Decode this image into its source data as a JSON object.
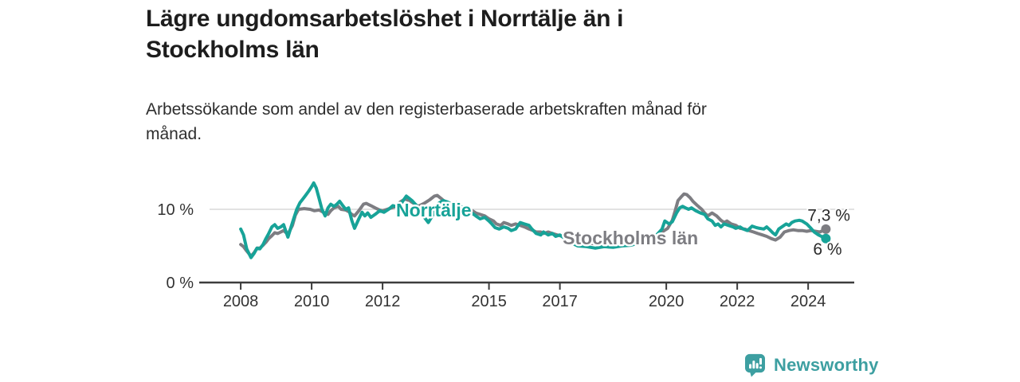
{
  "header": {
    "title": "Lägre ungdomsarbetslöshet i Norrtälje än i\nStockholms län",
    "subtitle": "Arbetssökande som andel av den registerbaserade arbetskraften månad för\nmånad."
  },
  "footer": {
    "brand": "Newsworthy",
    "logo_icon": "bar-chart-speech-bubble-icon"
  },
  "colors": {
    "norrtalje_teal": "#17a398",
    "stockholm_gray": "#7d7d82",
    "gridline": "#d9d9d9",
    "axis": "#3c3c3c",
    "axis_text": "#333333",
    "value_text": "#2b2b2b",
    "brand_teal": "#3d9fa1",
    "title_text": "#1d1d1d"
  },
  "chart_data": {
    "type": "line",
    "x_range": [
      2006.83,
      2025.3
    ],
    "y_range": [
      0,
      14.5
    ],
    "y_gridlines": [
      10
    ],
    "y_tick_labels": [
      {
        "value": 10,
        "label": "10 %"
      },
      {
        "value": 0,
        "label": "0 %"
      }
    ],
    "x_ticks": [
      {
        "value": 2008,
        "label": "2008"
      },
      {
        "value": 2010,
        "label": "2010"
      },
      {
        "value": 2012,
        "label": "2012"
      },
      {
        "value": 2015,
        "label": "2015"
      },
      {
        "value": 2017,
        "label": "2017"
      },
      {
        "value": 2020,
        "label": "2020"
      },
      {
        "value": 2022,
        "label": "2022"
      },
      {
        "value": 2024,
        "label": "2024"
      }
    ],
    "unit": "%",
    "legend_position": "inline-labels",
    "grid": "horizontal-only",
    "series": [
      {
        "name": "Stockholms län",
        "color": "#7d7d82",
        "end_value": 7.3,
        "end_dot": true,
        "name_label": {
          "x": 2017.08,
          "y": 5.2
        },
        "end_label": {
          "text": "7,3 %",
          "x": 2023.98,
          "y": 8.4
        },
        "points": [
          [
            2008.0,
            5.2
          ],
          [
            2008.08,
            4.9
          ],
          [
            2008.17,
            4.3
          ],
          [
            2008.29,
            3.6
          ],
          [
            2008.38,
            4.1
          ],
          [
            2008.46,
            4.7
          ],
          [
            2008.54,
            4.7
          ],
          [
            2008.63,
            5.1
          ],
          [
            2008.71,
            5.5
          ],
          [
            2008.79,
            6.0
          ],
          [
            2008.88,
            6.4
          ],
          [
            2008.96,
            6.8
          ],
          [
            2009.04,
            6.7
          ],
          [
            2009.13,
            6.9
          ],
          [
            2009.21,
            7.1
          ],
          [
            2009.33,
            6.6
          ],
          [
            2009.46,
            7.8
          ],
          [
            2009.54,
            9.2
          ],
          [
            2009.63,
            10.0
          ],
          [
            2009.79,
            10.1
          ],
          [
            2009.96,
            10.0
          ],
          [
            2010.08,
            9.8
          ],
          [
            2010.21,
            9.9
          ],
          [
            2010.33,
            9.6
          ],
          [
            2010.46,
            9.3
          ],
          [
            2010.54,
            9.8
          ],
          [
            2010.63,
            10.2
          ],
          [
            2010.75,
            10.4
          ],
          [
            2010.83,
            10.0
          ],
          [
            2010.96,
            9.9
          ],
          [
            2011.04,
            9.7
          ],
          [
            2011.13,
            9.3
          ],
          [
            2011.21,
            9.1
          ],
          [
            2011.33,
            9.8
          ],
          [
            2011.46,
            10.7
          ],
          [
            2011.54,
            10.8
          ],
          [
            2011.67,
            10.5
          ],
          [
            2011.79,
            10.2
          ],
          [
            2011.92,
            9.9
          ],
          [
            2012.0,
            9.8
          ],
          [
            2012.13,
            10.0
          ],
          [
            2012.25,
            10.2
          ],
          [
            2012.38,
            10.4
          ],
          [
            2012.5,
            11.0
          ],
          [
            2012.63,
            11.4
          ],
          [
            2012.75,
            11.2
          ],
          [
            2012.88,
            10.8
          ],
          [
            2013.0,
            10.4
          ],
          [
            2013.17,
            10.8
          ],
          [
            2013.33,
            11.3
          ],
          [
            2013.46,
            11.8
          ],
          [
            2013.54,
            11.9
          ],
          [
            2013.67,
            11.4
          ],
          [
            2013.79,
            10.9
          ],
          [
            2013.92,
            10.5
          ],
          [
            2014.08,
            10.3
          ],
          [
            2014.25,
            10.1
          ],
          [
            2014.38,
            10.2
          ],
          [
            2014.5,
            9.9
          ],
          [
            2014.63,
            9.5
          ],
          [
            2014.75,
            9.3
          ],
          [
            2014.88,
            9.1
          ],
          [
            2015.0,
            8.7
          ],
          [
            2015.13,
            8.4
          ],
          [
            2015.21,
            8.0
          ],
          [
            2015.33,
            7.8
          ],
          [
            2015.42,
            8.2
          ],
          [
            2015.54,
            8.0
          ],
          [
            2015.63,
            7.8
          ],
          [
            2015.75,
            8.0
          ],
          [
            2015.88,
            7.8
          ],
          [
            2016.0,
            7.6
          ],
          [
            2016.13,
            7.3
          ],
          [
            2016.25,
            7.1
          ],
          [
            2016.33,
            6.9
          ],
          [
            2016.46,
            6.9
          ],
          [
            2016.54,
            6.7
          ],
          [
            2016.67,
            6.9
          ],
          [
            2016.79,
            6.7
          ],
          [
            2016.92,
            6.5
          ],
          [
            2017.0,
            6.4
          ],
          [
            2017.25,
            6.0
          ],
          [
            2017.5,
            5.7
          ],
          [
            2017.75,
            5.4
          ],
          [
            2018.0,
            5.3
          ],
          [
            2018.33,
            5.2
          ],
          [
            2018.67,
            5.3
          ],
          [
            2019.0,
            5.4
          ],
          [
            2019.33,
            5.7
          ],
          [
            2019.63,
            6.2
          ],
          [
            2019.88,
            6.9
          ],
          [
            2020.04,
            7.4
          ],
          [
            2020.17,
            8.5
          ],
          [
            2020.25,
            9.8
          ],
          [
            2020.33,
            11.2
          ],
          [
            2020.42,
            11.7
          ],
          [
            2020.5,
            12.1
          ],
          [
            2020.58,
            12.0
          ],
          [
            2020.67,
            11.6
          ],
          [
            2020.75,
            11.1
          ],
          [
            2020.88,
            10.5
          ],
          [
            2021.0,
            10.0
          ],
          [
            2021.08,
            9.5
          ],
          [
            2021.17,
            9.1
          ],
          [
            2021.29,
            9.5
          ],
          [
            2021.42,
            9.1
          ],
          [
            2021.54,
            8.5
          ],
          [
            2021.63,
            8.2
          ],
          [
            2021.71,
            8.4
          ],
          [
            2021.83,
            8.0
          ],
          [
            2021.96,
            7.8
          ],
          [
            2022.08,
            7.4
          ],
          [
            2022.21,
            7.3
          ],
          [
            2022.33,
            7.1
          ],
          [
            2022.46,
            6.9
          ],
          [
            2022.58,
            6.7
          ],
          [
            2022.71,
            6.5
          ],
          [
            2022.83,
            6.3
          ],
          [
            2022.96,
            6.0
          ],
          [
            2023.08,
            5.8
          ],
          [
            2023.21,
            6.2
          ],
          [
            2023.33,
            6.9
          ],
          [
            2023.46,
            7.1
          ],
          [
            2023.58,
            7.2
          ],
          [
            2023.71,
            7.1
          ],
          [
            2023.83,
            7.1
          ],
          [
            2023.96,
            7.0
          ],
          [
            2024.08,
            7.1
          ],
          [
            2024.21,
            7.0
          ],
          [
            2024.33,
            6.9
          ],
          [
            2024.42,
            7.1
          ],
          [
            2024.5,
            7.3
          ]
        ]
      },
      {
        "name": "Norrtälje",
        "color": "#17a398",
        "end_value": 6.0,
        "end_dot": true,
        "name_label": {
          "x": 2012.38,
          "y": 9.0
        },
        "end_label": {
          "text": "6 %",
          "x": 2024.14,
          "y": 3.8
        },
        "points": [
          [
            2008.0,
            7.3
          ],
          [
            2008.08,
            6.5
          ],
          [
            2008.17,
            4.6
          ],
          [
            2008.29,
            3.4
          ],
          [
            2008.38,
            4.0
          ],
          [
            2008.46,
            4.7
          ],
          [
            2008.54,
            4.6
          ],
          [
            2008.63,
            5.2
          ],
          [
            2008.71,
            6.0
          ],
          [
            2008.79,
            6.7
          ],
          [
            2008.88,
            7.6
          ],
          [
            2008.96,
            7.9
          ],
          [
            2009.04,
            7.4
          ],
          [
            2009.13,
            7.6
          ],
          [
            2009.21,
            7.9
          ],
          [
            2009.33,
            6.2
          ],
          [
            2009.42,
            7.6
          ],
          [
            2009.5,
            8.8
          ],
          [
            2009.58,
            10.0
          ],
          [
            2009.67,
            10.9
          ],
          [
            2009.75,
            11.4
          ],
          [
            2009.83,
            11.9
          ],
          [
            2009.92,
            12.5
          ],
          [
            2010.0,
            13.1
          ],
          [
            2010.06,
            13.6
          ],
          [
            2010.13,
            12.9
          ],
          [
            2010.21,
            11.5
          ],
          [
            2010.29,
            10.0
          ],
          [
            2010.38,
            9.1
          ],
          [
            2010.46,
            10.2
          ],
          [
            2010.54,
            10.7
          ],
          [
            2010.63,
            10.4
          ],
          [
            2010.71,
            10.7
          ],
          [
            2010.79,
            11.1
          ],
          [
            2010.88,
            10.5
          ],
          [
            2010.96,
            10.0
          ],
          [
            2011.04,
            10.2
          ],
          [
            2011.13,
            8.5
          ],
          [
            2011.21,
            7.4
          ],
          [
            2011.33,
            8.7
          ],
          [
            2011.42,
            9.6
          ],
          [
            2011.5,
            9.1
          ],
          [
            2011.58,
            9.5
          ],
          [
            2011.67,
            8.9
          ],
          [
            2011.79,
            9.3
          ],
          [
            2011.92,
            9.8
          ],
          [
            2012.04,
            9.6
          ],
          [
            2012.17,
            10.0
          ],
          [
            2012.29,
            10.5
          ],
          [
            2012.42,
            10.3
          ],
          [
            2012.54,
            10.9
          ],
          [
            2012.67,
            11.8
          ],
          [
            2012.75,
            11.5
          ],
          [
            2012.83,
            11.2
          ],
          [
            2012.96,
            10.5
          ],
          [
            2013.13,
            9.2
          ],
          [
            2013.29,
            8.2
          ],
          [
            2013.46,
            9.6
          ],
          [
            2013.58,
            10.8
          ],
          [
            2013.71,
            11.2
          ],
          [
            2013.83,
            11.0
          ],
          [
            2013.96,
            10.7
          ],
          [
            2014.08,
            10.9
          ],
          [
            2014.21,
            10.4
          ],
          [
            2014.33,
            10.0
          ],
          [
            2014.46,
            9.7
          ],
          [
            2014.63,
            9.1
          ],
          [
            2014.75,
            8.7
          ],
          [
            2014.88,
            8.9
          ],
          [
            2015.0,
            8.4
          ],
          [
            2015.08,
            8.0
          ],
          [
            2015.17,
            7.5
          ],
          [
            2015.29,
            7.3
          ],
          [
            2015.42,
            7.6
          ],
          [
            2015.54,
            7.4
          ],
          [
            2015.63,
            7.1
          ],
          [
            2015.75,
            7.3
          ],
          [
            2015.88,
            8.2
          ],
          [
            2016.0,
            8.0
          ],
          [
            2016.13,
            7.8
          ],
          [
            2016.21,
            7.3
          ],
          [
            2016.33,
            6.7
          ],
          [
            2016.46,
            6.5
          ],
          [
            2016.54,
            6.9
          ],
          [
            2016.67,
            6.5
          ],
          [
            2016.79,
            6.7
          ],
          [
            2016.88,
            6.3
          ],
          [
            2017.0,
            6.5
          ],
          [
            2017.17,
            5.9
          ],
          [
            2017.33,
            5.4
          ],
          [
            2017.5,
            5.0
          ],
          [
            2017.75,
            4.9
          ],
          [
            2018.0,
            4.7
          ],
          [
            2018.25,
            4.9
          ],
          [
            2018.5,
            4.8
          ],
          [
            2018.75,
            5.0
          ],
          [
            2019.0,
            5.1
          ],
          [
            2019.25,
            5.4
          ],
          [
            2019.5,
            5.9
          ],
          [
            2019.71,
            6.4
          ],
          [
            2019.88,
            7.3
          ],
          [
            2019.96,
            8.4
          ],
          [
            2020.08,
            8.0
          ],
          [
            2020.17,
            8.3
          ],
          [
            2020.29,
            9.5
          ],
          [
            2020.38,
            10.2
          ],
          [
            2020.46,
            10.4
          ],
          [
            2020.54,
            10.2
          ],
          [
            2020.63,
            10.0
          ],
          [
            2020.71,
            10.2
          ],
          [
            2020.83,
            9.8
          ],
          [
            2020.96,
            9.5
          ],
          [
            2021.08,
            9.3
          ],
          [
            2021.17,
            8.7
          ],
          [
            2021.29,
            8.4
          ],
          [
            2021.38,
            7.8
          ],
          [
            2021.46,
            8.0
          ],
          [
            2021.54,
            7.6
          ],
          [
            2021.63,
            8.0
          ],
          [
            2021.75,
            7.8
          ],
          [
            2021.88,
            7.6
          ],
          [
            2021.96,
            7.4
          ],
          [
            2022.08,
            7.6
          ],
          [
            2022.17,
            7.3
          ],
          [
            2022.29,
            7.1
          ],
          [
            2022.42,
            7.7
          ],
          [
            2022.54,
            7.5
          ],
          [
            2022.63,
            7.4
          ],
          [
            2022.75,
            7.3
          ],
          [
            2022.83,
            7.6
          ],
          [
            2022.92,
            7.2
          ],
          [
            2023.0,
            6.8
          ],
          [
            2023.08,
            6.5
          ],
          [
            2023.17,
            7.3
          ],
          [
            2023.29,
            7.7
          ],
          [
            2023.38,
            8.0
          ],
          [
            2023.46,
            7.8
          ],
          [
            2023.54,
            8.2
          ],
          [
            2023.63,
            8.4
          ],
          [
            2023.75,
            8.5
          ],
          [
            2023.83,
            8.4
          ],
          [
            2023.96,
            8.0
          ],
          [
            2024.08,
            7.4
          ],
          [
            2024.17,
            6.9
          ],
          [
            2024.29,
            6.5
          ],
          [
            2024.42,
            6.2
          ],
          [
            2024.5,
            6.0
          ]
        ]
      }
    ]
  }
}
